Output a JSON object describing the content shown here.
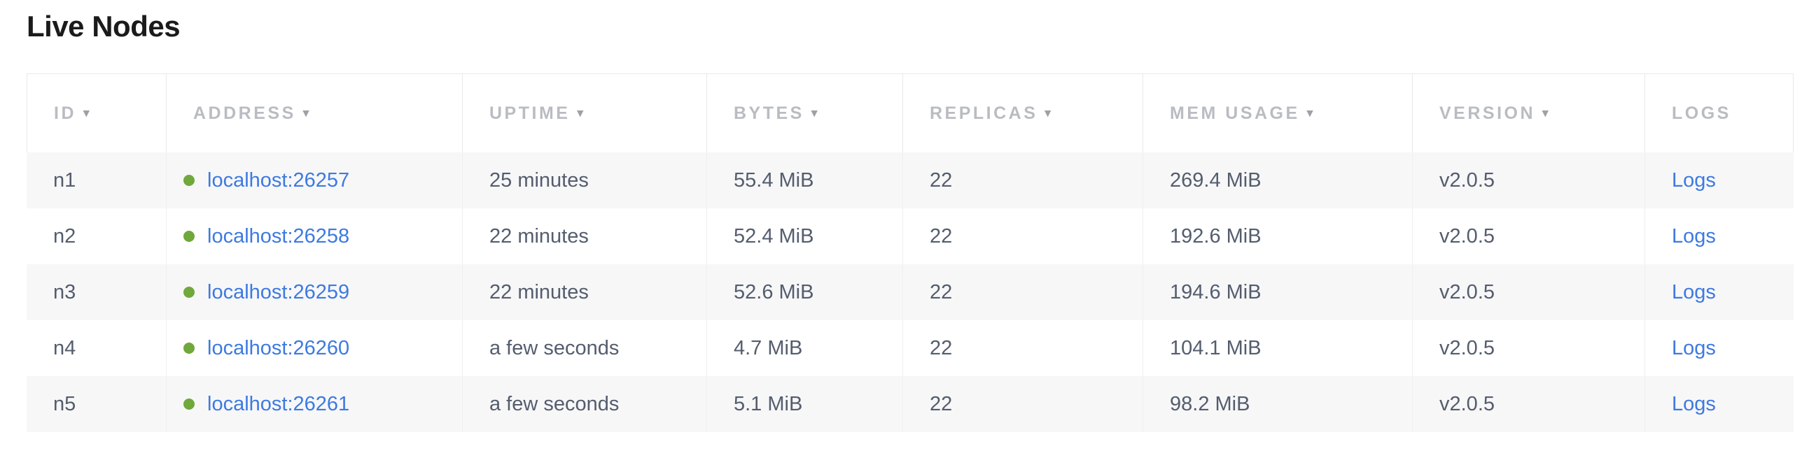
{
  "page": {
    "title": "Live Nodes"
  },
  "colors": {
    "link_blue": "#3d7ae0",
    "status_green": "#71a83c",
    "header_gray": "#b9bcc2",
    "arrow_gray": "#9da1a7",
    "cell_text": "#545d6e",
    "row_stripe": "#f7f7f8",
    "border_color": "#e9e9e9",
    "divider_color": "#efefef",
    "title_text": "#1b1b1b"
  },
  "table": {
    "sort_arrow": "▾",
    "columns": [
      {
        "label": "ID",
        "sortable": true
      },
      {
        "label": "ADDRESS",
        "sortable": true
      },
      {
        "label": "UPTIME",
        "sortable": true
      },
      {
        "label": "BYTES",
        "sortable": true
      },
      {
        "label": "REPLICAS",
        "sortable": true
      },
      {
        "label": "MEM USAGE",
        "sortable": true
      },
      {
        "label": "VERSION",
        "sortable": true
      },
      {
        "label": "LOGS",
        "sortable": false
      }
    ],
    "rows": [
      {
        "id": "n1",
        "status": "live",
        "address": "localhost:26257",
        "uptime": "25 minutes",
        "bytes": "55.4 MiB",
        "replicas": "22",
        "mem_usage": "269.4 MiB",
        "version": "v2.0.5",
        "logs_label": "Logs"
      },
      {
        "id": "n2",
        "status": "live",
        "address": "localhost:26258",
        "uptime": "22 minutes",
        "bytes": "52.4 MiB",
        "replicas": "22",
        "mem_usage": "192.6 MiB",
        "version": "v2.0.5",
        "logs_label": "Logs"
      },
      {
        "id": "n3",
        "status": "live",
        "address": "localhost:26259",
        "uptime": "22 minutes",
        "bytes": "52.6 MiB",
        "replicas": "22",
        "mem_usage": "194.6 MiB",
        "version": "v2.0.5",
        "logs_label": "Logs"
      },
      {
        "id": "n4",
        "status": "live",
        "address": "localhost:26260",
        "uptime": "a few seconds",
        "bytes": "4.7 MiB",
        "replicas": "22",
        "mem_usage": "104.1 MiB",
        "version": "v2.0.5",
        "logs_label": "Logs"
      },
      {
        "id": "n5",
        "status": "live",
        "address": "localhost:26261",
        "uptime": "a few seconds",
        "bytes": "5.1 MiB",
        "replicas": "22",
        "mem_usage": "98.2 MiB",
        "version": "v2.0.5",
        "logs_label": "Logs"
      }
    ]
  }
}
